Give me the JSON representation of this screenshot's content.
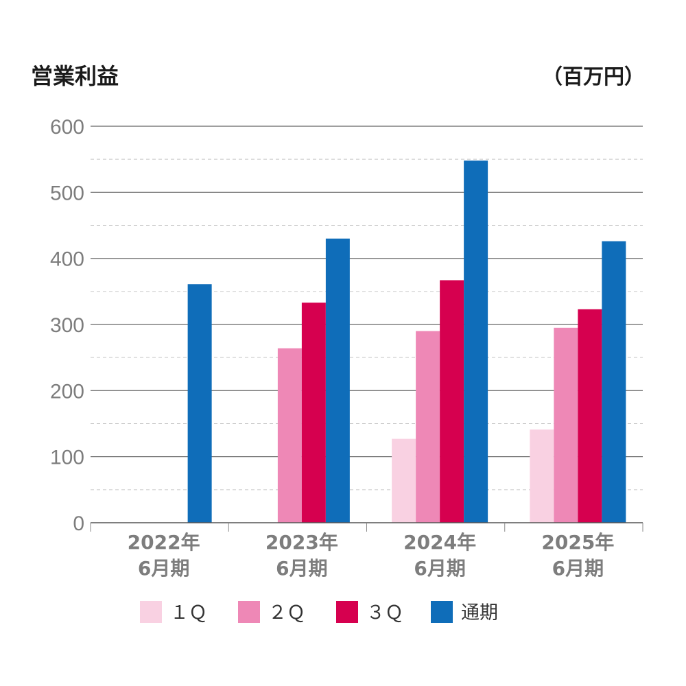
{
  "chart_data": {
    "type": "bar",
    "title": "営業利益",
    "unit_label": "（百万円）",
    "categories": [
      [
        "2022年",
        "6月期"
      ],
      [
        "2023年",
        "6月期"
      ],
      [
        "2024年",
        "6月期"
      ],
      [
        "2025年",
        "6月期"
      ]
    ],
    "series": [
      {
        "name": "1Q",
        "color": "#f9d1e2",
        "values": [
          null,
          null,
          127,
          141
        ]
      },
      {
        "name": "2Q",
        "color": "#ee88b6",
        "values": [
          null,
          264,
          290,
          295
        ]
      },
      {
        "name": "3Q",
        "color": "#d6004f",
        "values": [
          null,
          333,
          367,
          323
        ]
      },
      {
        "name": "通期",
        "color": "#0f6db9",
        "values": [
          361,
          430,
          548,
          426
        ]
      }
    ],
    "legend_labels": [
      "１Ｑ",
      "２Ｑ",
      "３Ｑ",
      "通期"
    ],
    "ylim": [
      0,
      600
    ],
    "yticks": [
      "0",
      "100",
      "200",
      "300",
      "400",
      "500",
      "600"
    ],
    "grid": true,
    "legend_position": "bottom"
  }
}
